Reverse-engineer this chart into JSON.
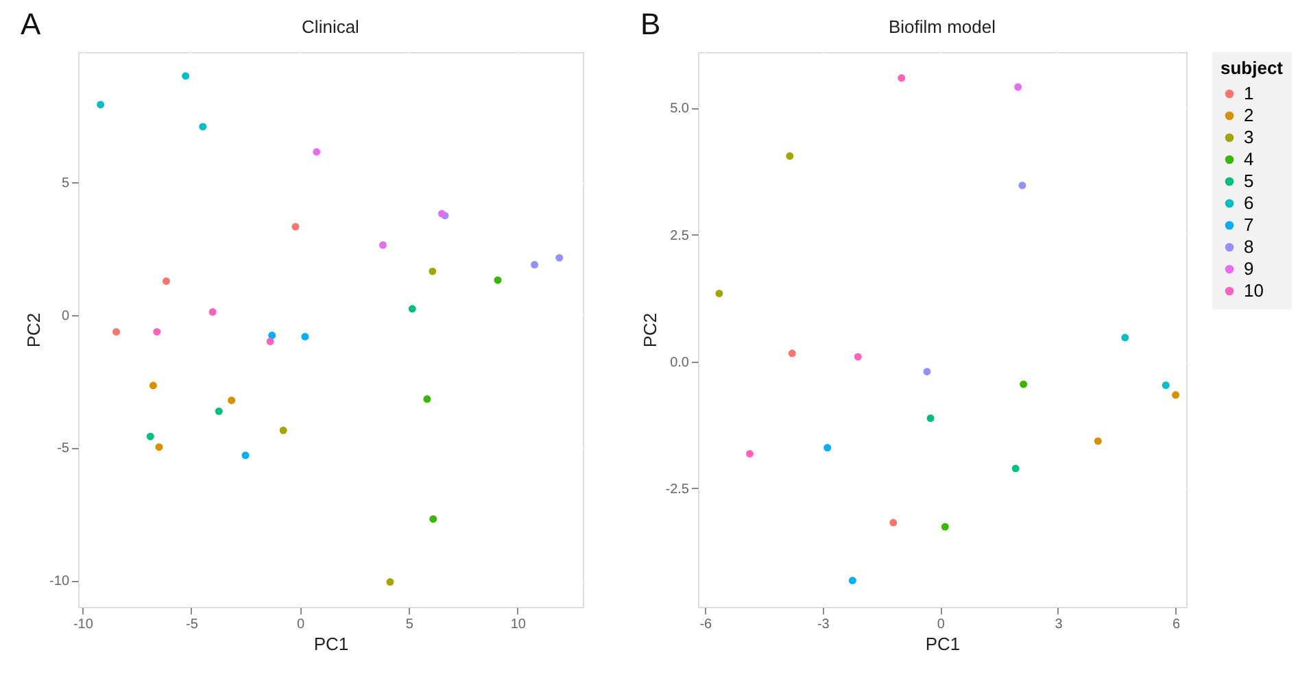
{
  "chart_data": [
    {
      "type": "scatter",
      "title": "Clinical",
      "xlabel": "PC1",
      "ylabel": "PC2",
      "annotations": [
        "A"
      ],
      "xlim": [
        -10.2,
        13
      ],
      "ylim": [
        -11,
        9.9
      ],
      "xticks": [
        -10,
        -5,
        0,
        5,
        10
      ],
      "yticks": [
        -10,
        -5,
        0,
        5
      ],
      "grid": true,
      "legend": "right",
      "marker": "circle",
      "series": [
        {
          "name": "1",
          "color": "#f8766d",
          "x": [
            -0.21,
            -6.15,
            -8.45
          ],
          "values": [
            3.32,
            1.27,
            -0.64
          ]
        },
        {
          "name": "2",
          "color": "#d89000",
          "x": [
            -6.75,
            -3.15,
            -6.48
          ],
          "values": [
            -2.66,
            -3.22,
            -4.98
          ]
        },
        {
          "name": "3",
          "color": "#a3a500",
          "x": [
            6.09,
            -0.77,
            4.14
          ],
          "values": [
            1.64,
            -4.35,
            -10.06
          ]
        },
        {
          "name": "4",
          "color": "#39b600",
          "x": [
            9.09,
            5.84,
            6.12
          ],
          "values": [
            1.31,
            -3.17,
            -7.69
          ]
        },
        {
          "name": "5",
          "color": "#00bf7d",
          "x": [
            5.16,
            -3.73,
            -6.88
          ],
          "values": [
            0.23,
            -3.63,
            -4.58
          ]
        },
        {
          "name": "6",
          "color": "#00bfc4",
          "x": [
            -9.17,
            -5.26,
            -4.47
          ],
          "values": [
            7.92,
            9.0,
            7.09
          ]
        },
        {
          "name": "7",
          "color": "#00b0f6",
          "x": [
            -1.29,
            0.23,
            -2.51
          ],
          "values": [
            -0.77,
            -0.82,
            -5.29
          ]
        },
        {
          "name": "8",
          "color": "#9590ff",
          "x": [
            6.66,
            10.78,
            11.92
          ],
          "values": [
            3.74,
            1.89,
            2.15
          ]
        },
        {
          "name": "9",
          "color": "#e76bf3",
          "x": [
            0.76,
            3.81,
            6.52
          ],
          "values": [
            6.14,
            2.63,
            3.81
          ]
        },
        {
          "name": "10",
          "color": "#ff62bc",
          "x": [
            -4.02,
            -6.58,
            -1.37
          ],
          "values": [
            0.11,
            -0.64,
            -1.0
          ]
        }
      ]
    },
    {
      "type": "scatter",
      "title": "Biofilm model",
      "xlabel": "PC1",
      "ylabel": "PC2",
      "annotations": [
        "B"
      ],
      "legend_title": "subject",
      "xlim": [
        -6.18,
        6.27
      ],
      "ylim": [
        -4.84,
        6.1
      ],
      "xticks": [
        -6,
        -3,
        0,
        3,
        6
      ],
      "yticks": [
        {
          "value": -2.5,
          "label": "-2.5"
        },
        {
          "value": 0,
          "label": "0.0"
        },
        {
          "value": 2.5,
          "label": "2.5"
        },
        {
          "value": 5,
          "label": "5.0"
        }
      ],
      "grid": true,
      "legend": "right",
      "marker": "circle",
      "series": [
        {
          "name": "1",
          "color": "#f8766d",
          "x": [
            -3.78,
            -1.2
          ],
          "values": [
            0.16,
            -3.18
          ]
        },
        {
          "name": "2",
          "color": "#d89000",
          "x": [
            6.0,
            4.02
          ],
          "values": [
            -0.66,
            -1.57
          ]
        },
        {
          "name": "3",
          "color": "#a3a500",
          "x": [
            -3.84,
            -5.64
          ],
          "values": [
            4.05,
            1.34
          ]
        },
        {
          "name": "4",
          "color": "#39b600",
          "x": [
            2.12,
            0.12
          ],
          "values": [
            -0.45,
            -3.26
          ]
        },
        {
          "name": "5",
          "color": "#00bf7d",
          "x": [
            -0.25,
            1.92
          ],
          "values": [
            -1.12,
            -2.11
          ]
        },
        {
          "name": "6",
          "color": "#00bfc4",
          "x": [
            4.71,
            5.75
          ],
          "values": [
            0.47,
            -0.47
          ]
        },
        {
          "name": "7",
          "color": "#00b0f6",
          "x": [
            -2.88,
            -2.24
          ],
          "values": [
            -1.7,
            -4.32
          ]
        },
        {
          "name": "8",
          "color": "#9590ff",
          "x": [
            2.09,
            -0.34
          ],
          "values": [
            3.47,
            -0.2
          ]
        },
        {
          "name": "9",
          "color": "#e76bf3",
          "x": [
            1.98
          ],
          "values": [
            5.41
          ]
        },
        {
          "name": "10",
          "color": "#ff62bc",
          "x": [
            -0.99,
            -2.1,
            -4.86
          ],
          "values": [
            5.59,
            0.09,
            -1.82
          ]
        }
      ]
    }
  ]
}
